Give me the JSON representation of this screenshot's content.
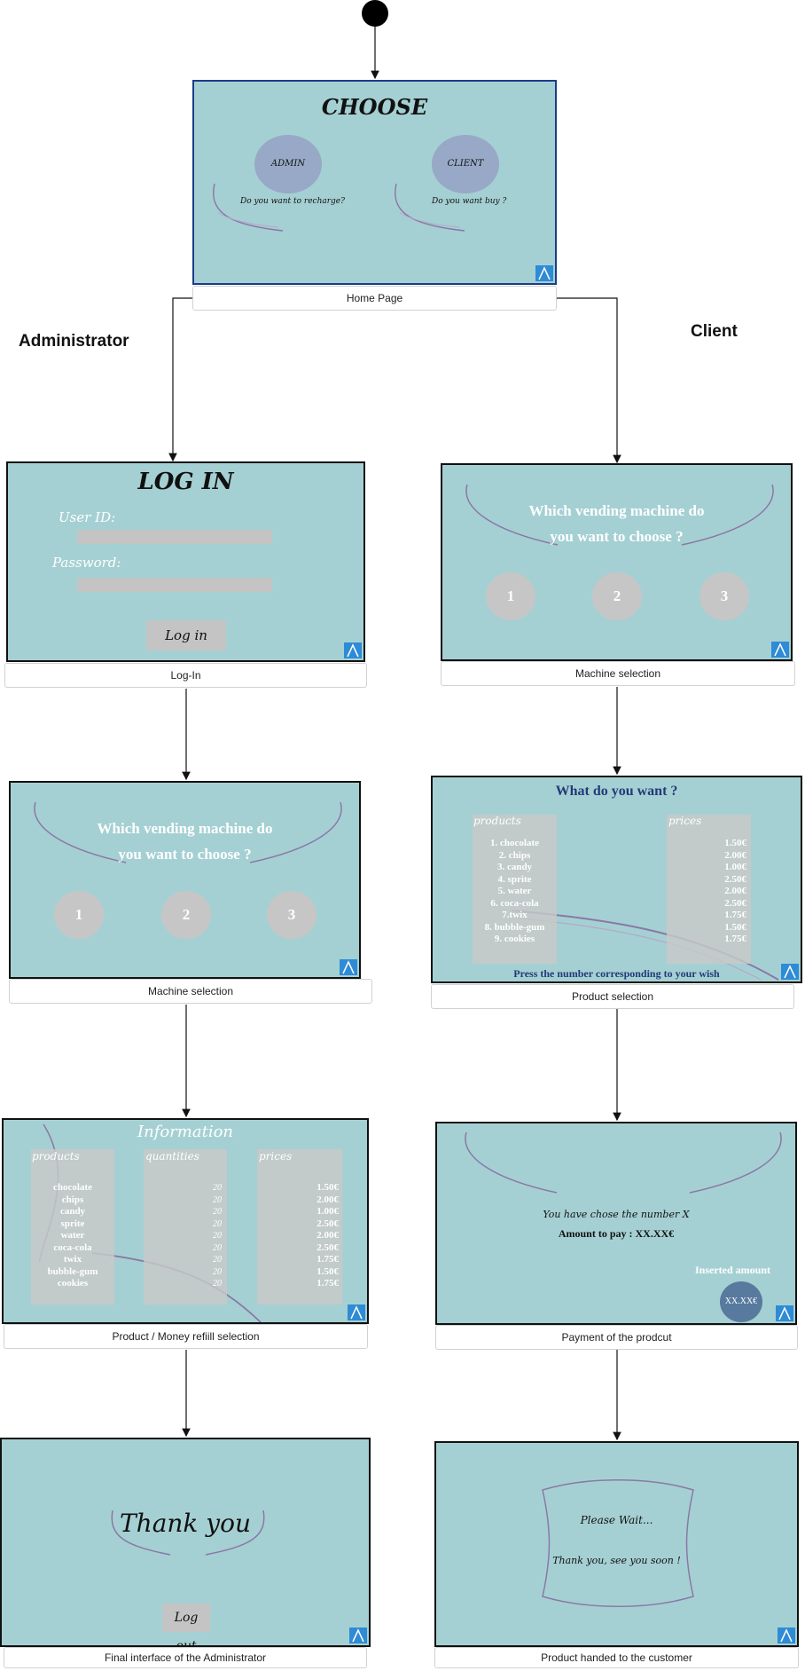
{
  "lanes": {
    "admin": "Administrator",
    "client": "Client"
  },
  "colors": {
    "screen_bg": "#a5d0d3",
    "button_gray": "#c6c6c6",
    "bubble": "#97a9c6",
    "heading_navy": "#233a78",
    "logo_blue": "#2e8bd6",
    "amount_circle": "#587a9e"
  },
  "home": {
    "title": "CHOOSE",
    "admin_label": "ADMIN",
    "admin_question": "Do you want to recharge?",
    "client_label": "CLIENT",
    "client_question": "Do you want buy ?",
    "caption": "Home Page"
  },
  "login": {
    "title": "LOG IN",
    "user_label": "User ID:",
    "password_label": "Password:",
    "button": "Log in",
    "caption": "Log-In"
  },
  "admin_machine": {
    "line1": "Which vending machine do",
    "line2": "you want to choose ?",
    "buttons": [
      "1",
      "2",
      "3"
    ],
    "caption": "Machine selection"
  },
  "client_machine": {
    "line1": "Which vending machine do",
    "line2": "you want to choose ?",
    "buttons": [
      "1",
      "2",
      "3"
    ],
    "caption": "Machine selection"
  },
  "product_selection": {
    "title": "What do you want ?",
    "products_header": "products",
    "prices_header": "prices",
    "products": [
      "1. chocolate",
      "2. chips",
      "3. candy",
      "4. sprite",
      "5. water",
      "6. coca-cola",
      "7.twix",
      "8. bubble-gum",
      "9. cookies"
    ],
    "prices": [
      "1.50€",
      "2.00€",
      "1.00€",
      "2.50€",
      "2.00€",
      "2.50€",
      "1.75€",
      "1.50€",
      "1.75€"
    ],
    "footer": "Press the number corresponding to your wish",
    "caption": "Product selection"
  },
  "refill": {
    "title": "Information",
    "products_header": "products",
    "quantities_header": "quantities",
    "prices_header": "prices",
    "products": [
      "chocolate",
      "chips",
      "candy",
      "sprite",
      "water",
      "coca-cola",
      "twix",
      "bubble-gum",
      "cookies"
    ],
    "quantities": [
      "20",
      "20",
      "20",
      "20",
      "20",
      "20",
      "20",
      "20",
      "20"
    ],
    "prices": [
      "1.50€",
      "2.00€",
      "1.00€",
      "2.50€",
      "2.00€",
      "2.50€",
      "1.75€",
      "1.50€",
      "1.75€"
    ],
    "caption": "Product / Money refiill selection"
  },
  "payment": {
    "chosen": "You have chose the number X",
    "amount": "Amount to pay : XX.XX€",
    "inserted_label": "Inserted amount",
    "inserted_value": "XX.XX€",
    "caption": "Payment of the prodcut"
  },
  "admin_final": {
    "title": "Thank you",
    "button": "Log out",
    "caption": "Final interface of the Administrator"
  },
  "client_final": {
    "line1": "Please Wait...",
    "line2": "Thank you, see you soon !",
    "caption": "Product handed to the customer"
  }
}
